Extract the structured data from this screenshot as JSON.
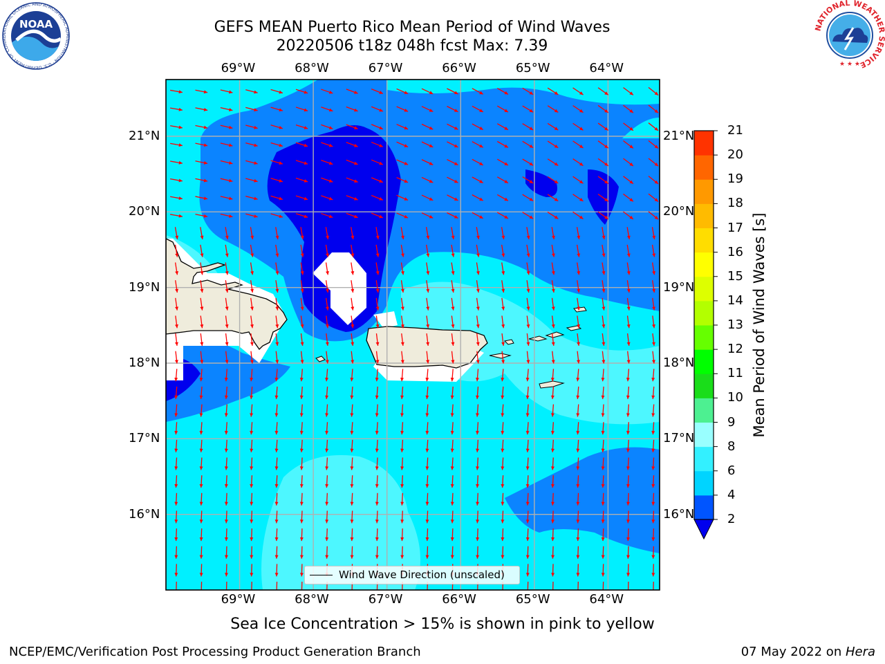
{
  "title": {
    "line1": "GEFS MEAN Puerto Rico Mean Period of Wind Waves",
    "line2": "20220506 t18z 048h fcst   Max: 7.39"
  },
  "axes": {
    "lon_ticks": [
      "69°W",
      "68°W",
      "67°W",
      "66°W",
      "65°W",
      "64°W"
    ],
    "lat_ticks": [
      "21°N",
      "20°N",
      "19°N",
      "18°N",
      "17°N",
      "16°N"
    ]
  },
  "colorbar": {
    "label": "Mean Period of Wind Waves [s]",
    "ticks": [
      "2",
      "4",
      "6",
      "8",
      "9",
      "10",
      "11",
      "12",
      "13",
      "14",
      "15",
      "16",
      "17",
      "18",
      "19",
      "20",
      "21"
    ],
    "colors": [
      "#0055ff",
      "#00d4ff",
      "#33f0ff",
      "#99ffff",
      "#4df091",
      "#1add1a",
      "#00ff00",
      "#66ff00",
      "#b3ff00",
      "#ddff00",
      "#ffff00",
      "#ffdd00",
      "#ffbb00",
      "#ff9900",
      "#ff6600",
      "#ff3300",
      "#ff0000"
    ],
    "extend_color": "#0000ee"
  },
  "legend": {
    "label": "Wind Wave Direction (unscaled)"
  },
  "note": "Sea Ice Concentration > 15% is shown in pink to yellow",
  "footer": {
    "credit": "NCEP/EMC/Verification Post Processing Product Generation Branch",
    "date": "07 May 2022 on ",
    "host": "Hera"
  },
  "logos": {
    "left": "NOAA",
    "left_ring": "NATIONAL OCEANIC AND ATMOSPHERIC ADMINISTRATION · U.S. DEPARTMENT OF COMMERCE",
    "right_ring": "NATIONAL WEATHER SERVICE"
  },
  "map_colors": {
    "land": "#efecdc",
    "coast": "#000000",
    "arrow": "#ff0000",
    "grid": "#b0b0b0"
  },
  "chart_data": {
    "type": "heatmap",
    "xlim": [
      -70,
      -63.3
    ],
    "ylim": [
      15,
      21.75
    ],
    "color_levels": [
      2,
      4,
      6,
      8,
      9,
      10,
      11,
      12,
      13,
      14,
      15,
      16,
      17,
      18,
      19,
      20,
      21
    ],
    "max_value": 7.39,
    "grid": true
  }
}
